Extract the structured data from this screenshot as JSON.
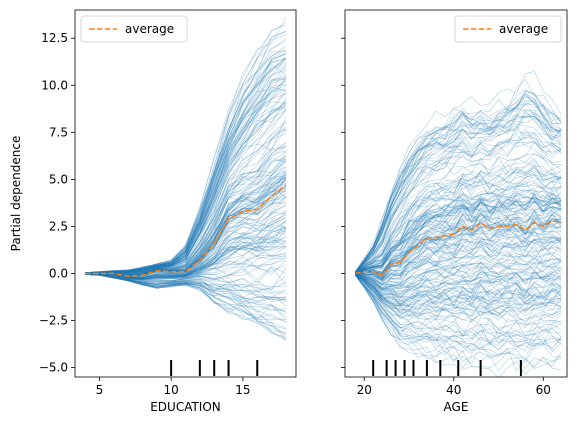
{
  "chart_data": [
    {
      "type": "line",
      "xlabel": "EDUCATION",
      "ylabel": "Partial dependence",
      "xlim": [
        3.3,
        18.7
      ],
      "ylim": [
        -5.5,
        14.0
      ],
      "xticks": [
        5,
        10,
        15
      ],
      "yticks": [
        -5.0,
        -2.5,
        0.0,
        2.5,
        5.0,
        7.5,
        10.0,
        12.5
      ],
      "ytick_labels": [
        "−5.0",
        "−2.5",
        "0.0",
        "2.5",
        "5.0",
        "7.5",
        "10.0",
        "12.5"
      ],
      "legend": {
        "label": "average",
        "placement": "top-left"
      },
      "x": [
        4,
        5,
        6,
        7,
        8,
        9,
        10,
        11,
        12,
        13,
        14,
        15,
        16,
        17,
        18
      ],
      "average": [
        0.0,
        0.0,
        0.0,
        -0.15,
        -0.1,
        0.15,
        0.1,
        0.1,
        0.7,
        1.6,
        2.9,
        3.3,
        3.4,
        4.1,
        4.7
      ],
      "spread_upper": [
        0.05,
        0.1,
        0.15,
        0.2,
        0.35,
        0.5,
        0.7,
        1.5,
        3.5,
        6.0,
        8.5,
        10.5,
        12.0,
        13.0,
        13.5
      ],
      "spread_lower": [
        -0.05,
        -0.1,
        -0.25,
        -0.4,
        -0.6,
        -0.8,
        -0.7,
        -0.6,
        -0.8,
        -1.5,
        -2.0,
        -2.3,
        -2.6,
        -3.0,
        -3.3
      ],
      "rug_x": [
        10,
        12,
        13,
        14,
        16
      ],
      "legend_label": "average"
    },
    {
      "type": "line",
      "xlabel": "AGE",
      "ylabel": "",
      "xlim": [
        15.7,
        65.3
      ],
      "ylim": [
        -5.5,
        14.0
      ],
      "xticks": [
        20,
        40,
        60
      ],
      "yticks": [
        -5.0,
        -2.5,
        0.0,
        2.5,
        5.0,
        7.5,
        10.0,
        12.5
      ],
      "shared_y": true,
      "legend": {
        "label": "average",
        "placement": "top-right"
      },
      "x": [
        18,
        20,
        22,
        24,
        26,
        28,
        30,
        32,
        34,
        36,
        38,
        40,
        42,
        44,
        46,
        48,
        50,
        52,
        54,
        56,
        58,
        60,
        62,
        64
      ],
      "average": [
        0.0,
        0.1,
        0.1,
        -0.1,
        0.5,
        0.6,
        1.1,
        1.5,
        1.9,
        1.9,
        2.0,
        2.1,
        2.5,
        2.3,
        2.7,
        2.4,
        2.5,
        2.5,
        2.6,
        2.3,
        2.7,
        2.5,
        2.8,
        2.7
      ],
      "spread_upper": [
        0.1,
        0.8,
        1.6,
        3.0,
        4.5,
        5.8,
        6.8,
        7.6,
        8.0,
        8.3,
        8.6,
        9.0,
        9.3,
        9.0,
        9.2,
        9.0,
        9.4,
        9.6,
        10.1,
        10.7,
        10.3,
        9.6,
        9.0,
        8.8
      ],
      "spread_lower": [
        -0.1,
        -0.8,
        -1.6,
        -2.4,
        -3.3,
        -3.9,
        -4.2,
        -4.4,
        -4.5,
        -4.6,
        -4.6,
        -4.8,
        -4.9,
        -4.9,
        -4.8,
        -5.0,
        -5.1,
        -4.9,
        -5.0,
        -5.0,
        -4.9,
        -4.8,
        -4.8,
        -4.8
      ],
      "rug_x": [
        22,
        25,
        27,
        29,
        31,
        34,
        37,
        41,
        46,
        55
      ],
      "legend_label": "average"
    }
  ]
}
